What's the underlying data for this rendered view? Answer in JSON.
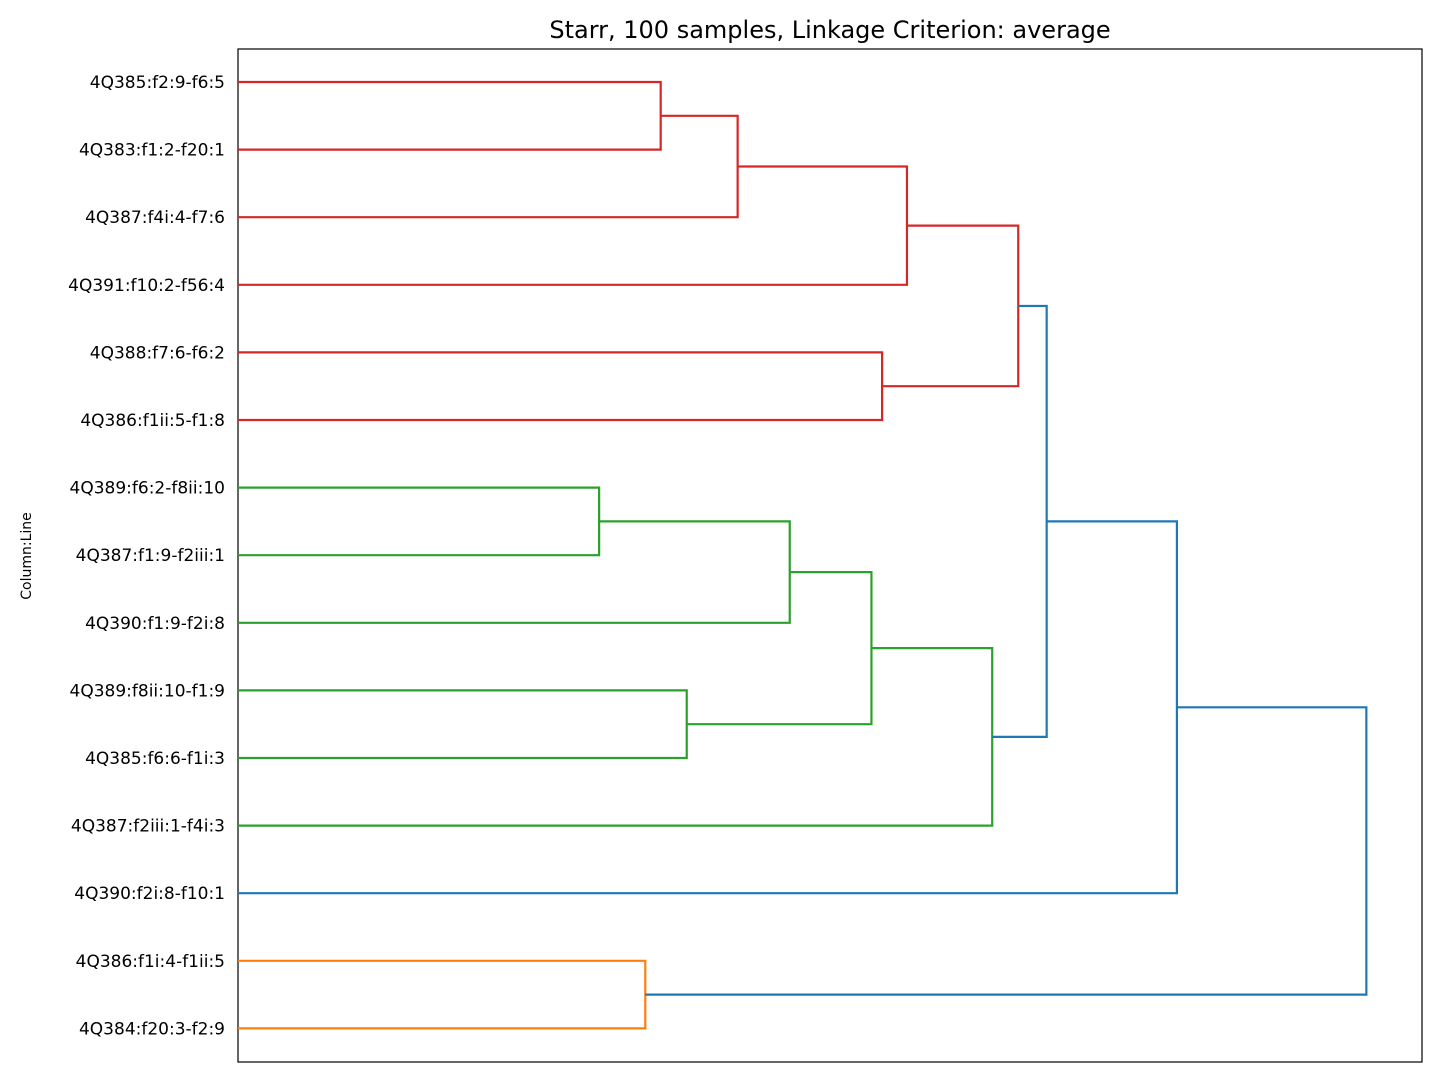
{
  "chart_data": {
    "type": "dendrogram",
    "title": "Starr, 100 samples, Linkage Criterion: average",
    "ylabel": "Column:Line",
    "xlabel": "",
    "orientation": "root-right",
    "grid": false,
    "leaves": [
      "4Q385:f2:9-f6:5",
      "4Q383:f1:2-f20:1",
      "4Q387:f4i:4-f7:6",
      "4Q391:f10:2-f56:4",
      "4Q388:f7:6-f6:2",
      "4Q386:f1ii:5-f1:8",
      "4Q389:f6:2-f8ii:10",
      "4Q387:f1:9-f2iii:1",
      "4Q390:f1:9-f2i:8",
      "4Q389:f8ii:10-f1:9",
      "4Q385:f6:6-f1i:3",
      "4Q387:f2iii:1-f4i:3",
      "4Q390:f2i:8-f10:1",
      "4Q386:f1i:4-f1ii:5",
      "4Q384:f20:3-f2:9"
    ],
    "height_range": [
      0,
      1
    ],
    "merges": [
      {
        "id": "n0",
        "a": 0,
        "b": 1,
        "height": 0.357,
        "color": "#d62728"
      },
      {
        "id": "n1",
        "a": "n0",
        "b": 2,
        "height": 0.422,
        "color": "#d62728"
      },
      {
        "id": "n2",
        "a": "n1",
        "b": 3,
        "height": 0.565,
        "color": "#d62728"
      },
      {
        "id": "n3",
        "a": 4,
        "b": 5,
        "height": 0.544,
        "color": "#d62728"
      },
      {
        "id": "n4",
        "a": "n2",
        "b": "n3",
        "height": 0.659,
        "color": "#d62728"
      },
      {
        "id": "n5",
        "a": 6,
        "b": 7,
        "height": 0.305,
        "color": "#2ca02c"
      },
      {
        "id": "n6",
        "a": "n5",
        "b": 8,
        "height": 0.466,
        "color": "#2ca02c"
      },
      {
        "id": "n7",
        "a": 9,
        "b": 10,
        "height": 0.379,
        "color": "#2ca02c"
      },
      {
        "id": "n8",
        "a": "n6",
        "b": "n7",
        "height": 0.535,
        "color": "#2ca02c"
      },
      {
        "id": "n9",
        "a": "n8",
        "b": 11,
        "height": 0.637,
        "color": "#2ca02c"
      },
      {
        "id": "n10",
        "a": "n4",
        "b": "n9",
        "height": 0.683,
        "color": "#1f77b4"
      },
      {
        "id": "n11",
        "a": "n10",
        "b": 12,
        "height": 0.793,
        "color": "#1f77b4"
      },
      {
        "id": "n12",
        "a": 13,
        "b": 14,
        "height": 0.344,
        "color": "#ff7f0e"
      },
      {
        "id": "n13",
        "a": "n11",
        "b": "n12",
        "height": 0.953,
        "color": "#1f77b4"
      }
    ]
  }
}
